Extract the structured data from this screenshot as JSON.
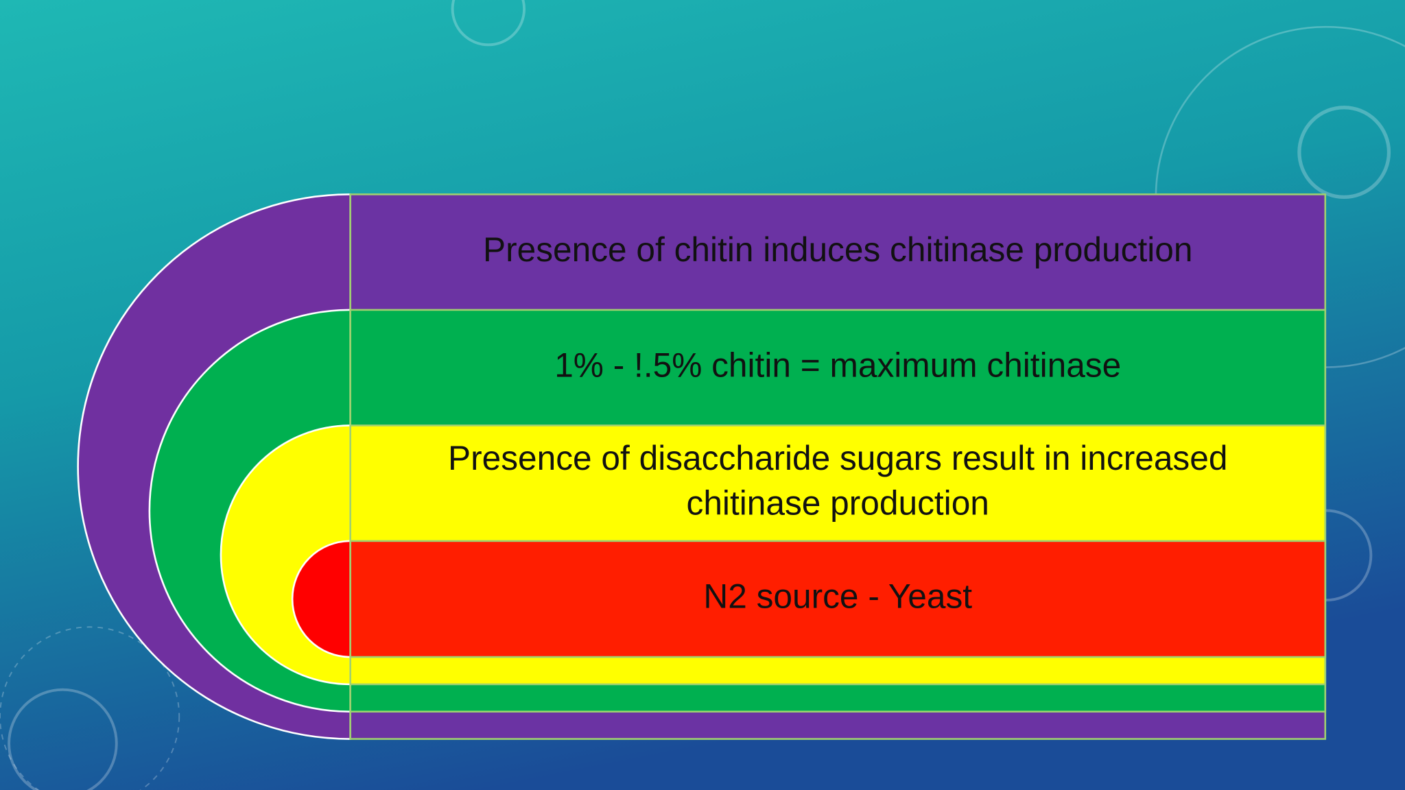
{
  "items": [
    {
      "lines": [
        "Presence of chitin induces chitinase production"
      ]
    },
    {
      "lines": [
        "1% - !.5% chitin = maximum chitinase"
      ]
    },
    {
      "lines": [
        "Presence of disaccharide sugars result in increased",
        "chitinase production"
      ]
    },
    {
      "lines": [
        "N2 source - Yeast"
      ]
    }
  ]
}
